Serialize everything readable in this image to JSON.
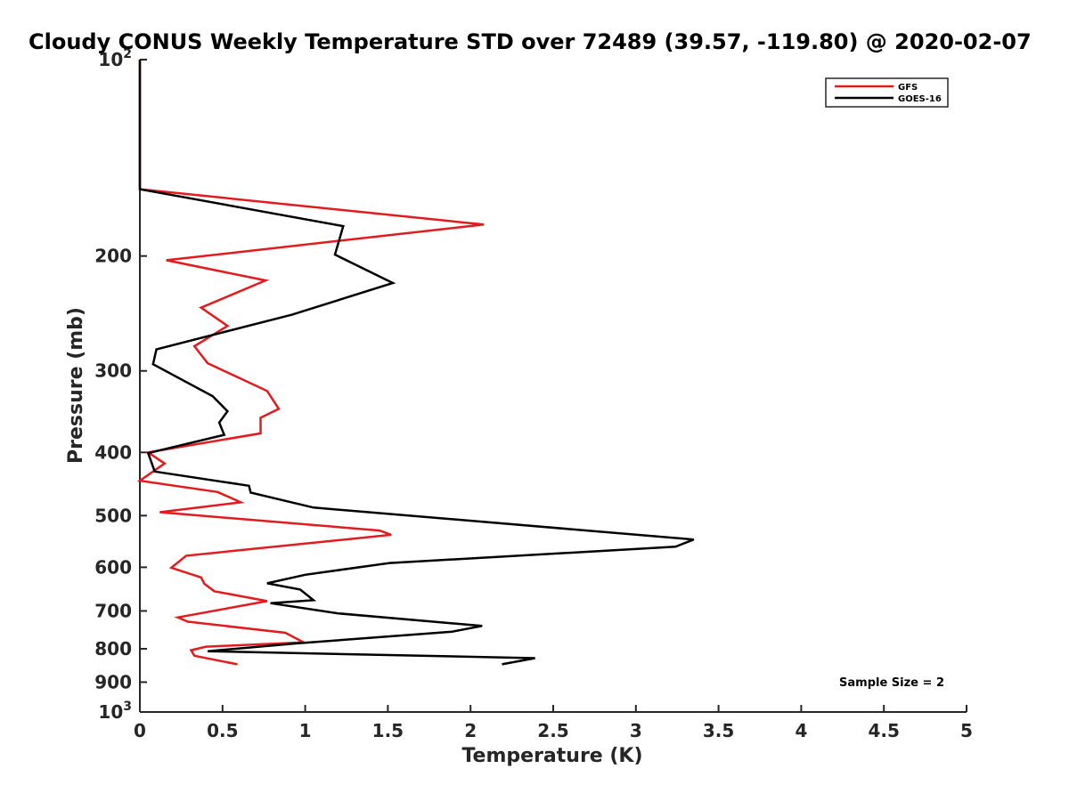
{
  "chart_data": {
    "type": "line",
    "title": "Cloudy CONUS Weekly Temperature STD over 72489 (39.57, -119.80) @ 2020-02-07",
    "xlabel": "Temperature (K)",
    "ylabel": "Pressure (mb)",
    "xlim": [
      0,
      5
    ],
    "ylim": [
      100,
      1000
    ],
    "yscale": "log",
    "y_reversed": true,
    "x_ticks": [
      "0",
      "0.5",
      "1",
      "1.5",
      "2",
      "2.5",
      "3",
      "3.5",
      "4",
      "4.5",
      "5"
    ],
    "y_ticks": [
      {
        "value": 100,
        "base": "10",
        "exp": "2"
      },
      {
        "value": 200,
        "label": "200"
      },
      {
        "value": 300,
        "label": "300"
      },
      {
        "value": 400,
        "label": "400"
      },
      {
        "value": 500,
        "label": "500"
      },
      {
        "value": 600,
        "label": "600"
      },
      {
        "value": 700,
        "label": "700"
      },
      {
        "value": 800,
        "label": "800"
      },
      {
        "value": 900,
        "label": "900"
      },
      {
        "value": 1000,
        "base": "10",
        "exp": "3"
      }
    ],
    "grid": false,
    "legend_position": "top-right",
    "annotation": "Sample Size = 2",
    "series": [
      {
        "name": "GFS",
        "color": "#e41a1c",
        "x": [
          0,
          0,
          0,
          2.08,
          0.16,
          0.76,
          0.37,
          0.53,
          0.33,
          0.41,
          0.77,
          0.84,
          0.73,
          0.73,
          0.05,
          0.15,
          0,
          0.47,
          0.61,
          0.12,
          1.45,
          1.52,
          0.28,
          0.19,
          0.37,
          0.39,
          0.45,
          0.77,
          0.23,
          0.29,
          0.88,
          0.99,
          0.4,
          0.31,
          0.33,
          0.59
        ],
        "y": [
          100,
          130,
          158,
          179,
          203,
          218,
          240,
          256,
          275,
          292,
          322,
          343,
          354,
          374,
          400,
          416,
          442,
          460,
          477,
          494,
          527,
          535,
          576,
          601,
          622,
          636,
          653,
          676,
          716,
          727,
          756,
          782,
          794,
          804,
          820,
          845
        ]
      },
      {
        "name": "GOES-16",
        "color": "#000000",
        "x": [
          0,
          0,
          0,
          1.23,
          1.18,
          1.53,
          0.92,
          0.1,
          0.08,
          0.44,
          0.53,
          0.48,
          0.51,
          0.05,
          0.09,
          0.66,
          0.67,
          1.05,
          3.35,
          3.24,
          1.51,
          1.0,
          0.77,
          0.97,
          1.05,
          0.79,
          1.2,
          2.07,
          1.89,
          0.95,
          0.41,
          2.39,
          2.19
        ],
        "y": [
          100,
          130,
          158,
          180,
          199,
          220,
          246,
          278,
          293,
          328,
          346,
          360,
          376,
          401,
          428,
          450,
          461,
          486,
          544,
          558,
          591,
          616,
          635,
          649,
          674,
          681,
          706,
          738,
          753,
          785,
          807,
          827,
          845
        ]
      }
    ]
  }
}
